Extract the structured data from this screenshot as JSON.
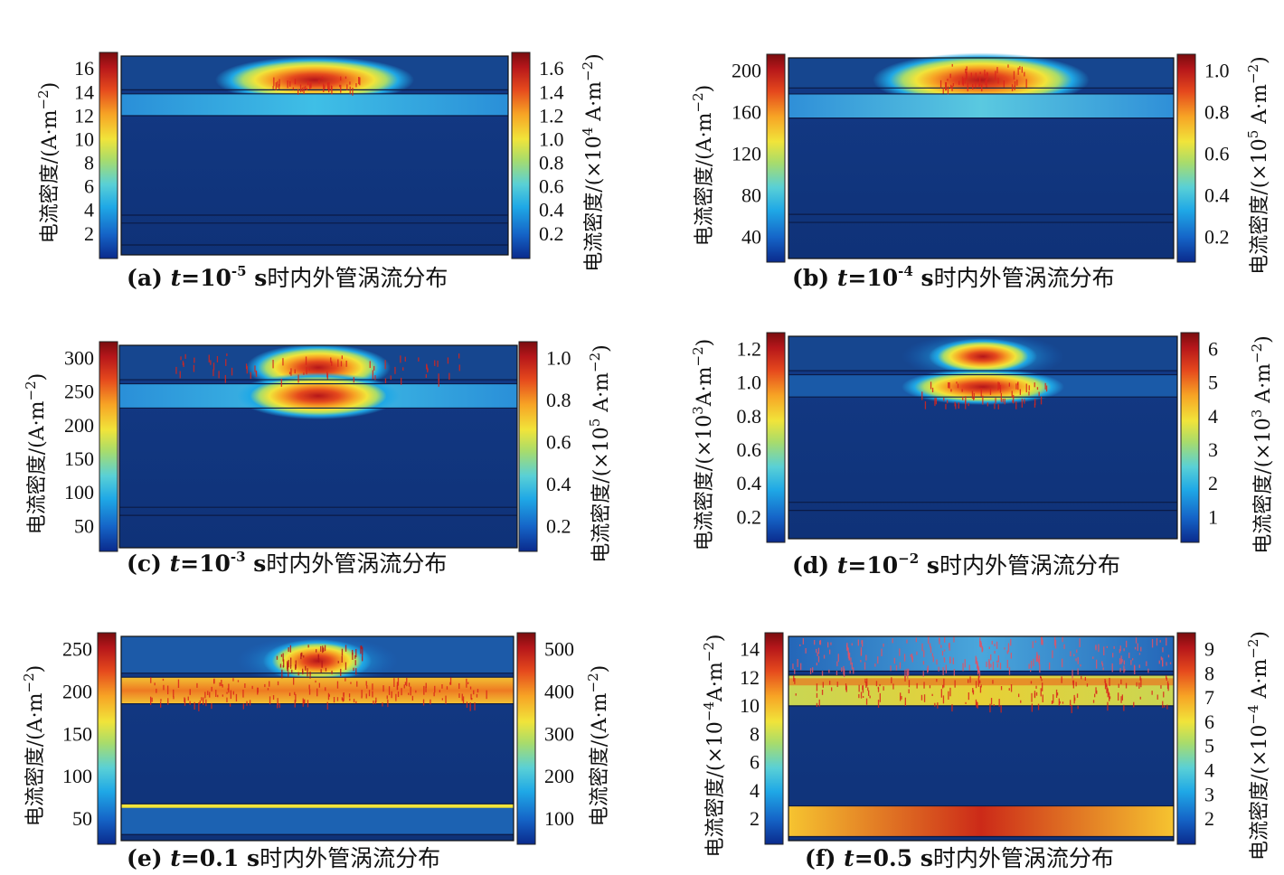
{
  "figure": {
    "caption_text": "时内外管涡流分布",
    "axis_prefix": "电流密度/",
    "colormap": [
      "#08103f",
      "#0a2a8c",
      "#1565c8",
      "#1fa8e6",
      "#59d0d6",
      "#a9dc6a",
      "#f1e43a",
      "#f7a425",
      "#e5491d",
      "#b5161a",
      "#7a0c0e"
    ],
    "panels": [
      {
        "id": "a",
        "caption": {
          "label": "(a)",
          "t_eq": "t",
          "value": "=10",
          "exp": "-5",
          "unit": " s"
        },
        "left_unit": "(A·m",
        "left_unit_exp": "−2",
        "left_unit_close": ")",
        "left_ticks": [
          "16",
          "14",
          "12",
          "10",
          "8",
          "6",
          "4",
          "2"
        ],
        "right_unit": "(×10",
        "right_unit_mid": "4",
        "right_unit_tail": " A·m",
        "right_unit_exp": "−2",
        "right_unit_close": ")",
        "right_ticks": [
          "1.6",
          "1.4",
          "1.2",
          "1.0",
          "0.8",
          "0.6",
          "0.4",
          "0.2"
        ]
      },
      {
        "id": "b",
        "caption": {
          "label": "(b)",
          "t_eq": "t",
          "value": "=10",
          "exp": "-4",
          "unit": " s"
        },
        "left_unit": "(A·m",
        "left_unit_exp": "−2",
        "left_unit_close": ")",
        "left_ticks": [
          "200",
          "160",
          "120",
          "80",
          "40"
        ],
        "right_unit": "(×10",
        "right_unit_mid": "5",
        "right_unit_tail": " A·m",
        "right_unit_exp": "−2",
        "right_unit_close": ")",
        "right_ticks": [
          "1.0",
          "0.8",
          "0.6",
          "0.4",
          "0.2"
        ]
      },
      {
        "id": "c",
        "caption": {
          "label": "(c)",
          "t_eq": "t",
          "value": "=10",
          "exp": "-3",
          "unit": " s"
        },
        "left_unit": "(A·m",
        "left_unit_exp": "−2",
        "left_unit_close": ")",
        "left_ticks": [
          "300",
          "250",
          "200",
          "150",
          "100",
          "50"
        ],
        "right_unit": "(×10",
        "right_unit_mid": "5",
        "right_unit_tail": " A·m",
        "right_unit_exp": "−2",
        "right_unit_close": ")",
        "right_ticks": [
          "1.0",
          "0.8",
          "0.6",
          "0.4",
          "0.2"
        ]
      },
      {
        "id": "d",
        "caption": {
          "label": "(d)",
          "t_eq": "t",
          "value": "=10",
          "exp": "−2",
          "unit": " s"
        },
        "left_unit": "(×10",
        "left_unit_mid": "3",
        "left_unit_tail": "A·m",
        "left_unit_exp": "−2",
        "left_unit_close": ")",
        "left_ticks": [
          "1.2",
          "1.0",
          "0.8",
          "0.6",
          "0.4",
          "0.2"
        ],
        "right_unit": "(×10",
        "right_unit_mid": "3",
        "right_unit_tail": " A·m",
        "right_unit_exp": "−2",
        "right_unit_close": ")",
        "right_ticks": [
          "6",
          "5",
          "4",
          "3",
          "2",
          "1"
        ]
      },
      {
        "id": "e",
        "caption": {
          "label": "(e)",
          "t_eq": "t",
          "value": "=0.1",
          "exp": "",
          "unit": " s"
        },
        "left_unit": "(A·m",
        "left_unit_exp": "−2",
        "left_unit_close": ")",
        "left_ticks": [
          "250",
          "200",
          "150",
          "100",
          "50"
        ],
        "right_unit": "(A·m",
        "right_unit_exp": "−2",
        "right_unit_close": ")",
        "right_ticks": [
          "500",
          "400",
          "300",
          "200",
          "100"
        ]
      },
      {
        "id": "f",
        "caption": {
          "label": "(f)",
          "t_eq": "t",
          "value": "=0.5",
          "exp": "",
          "unit": " s"
        },
        "left_unit": "(×10",
        "left_unit_mid": "−4",
        "left_unit_tail": "A·m",
        "left_unit_exp": "−2",
        "left_unit_close": ")",
        "left_ticks": [
          "14",
          "12",
          "10",
          "8",
          "6",
          "4",
          "2"
        ],
        "right_unit": "(×10",
        "right_unit_mid": "−4",
        "right_unit_tail": " A·m",
        "right_unit_exp": "−2",
        "right_unit_close": ")",
        "right_ticks": [
          "9",
          "8",
          "7",
          "6",
          "5",
          "4",
          "3",
          "2"
        ]
      }
    ]
  }
}
